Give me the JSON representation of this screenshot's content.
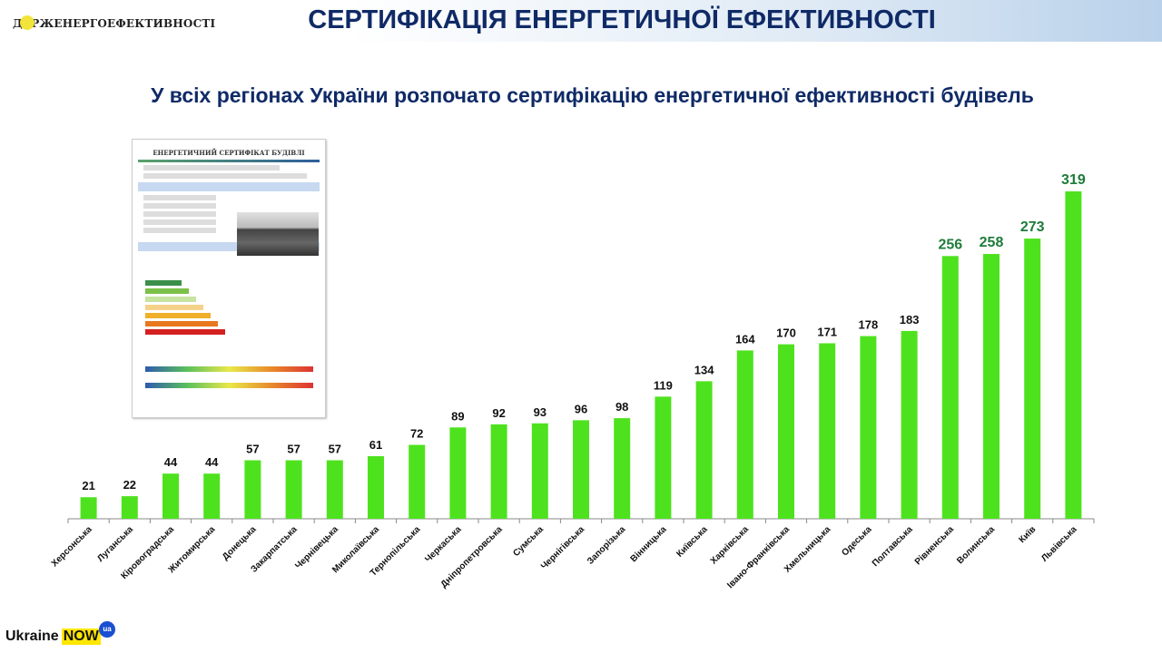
{
  "header": {
    "logo_text": "ДЕРЖЕНЕРГОЕФЕКТИВНОСТІ",
    "title": "СЕРТИФІКАЦІЯ ЕНЕРГЕТИЧНОЇ ЕФЕКТИВНОСТІ"
  },
  "subtitle": "У всіх регіонах України розпочато сертифікацію енергетичної ефективності будівель",
  "certificate": {
    "title": "ЕНЕРГЕТИЧНИЙ СЕРТИФІКАТ БУДІВЛІ"
  },
  "footer": {
    "logo_main": "Ukraine",
    "logo_now": "NOW",
    "logo_badge": "ua"
  },
  "colors": {
    "bar": "#4ee21e",
    "highlight_label": "#1e7b3a",
    "title": "#0f2a66"
  },
  "chart_data": {
    "type": "bar",
    "title": "",
    "xlabel": "",
    "ylabel": "",
    "ylim": [
      0,
      319
    ],
    "grid": false,
    "categories": [
      "Херсонська",
      "Луганська",
      "Кіровоградська",
      "Житомирська",
      "Донецька",
      "Закарпатська",
      "Чернівецька",
      "Миколаївська",
      "Тернопільська",
      "Черкаська",
      "Дніпропетровська",
      "Сумська",
      "Чернігівська",
      "Запорізька",
      "Вінницька",
      "Київська",
      "Харківська",
      "Івано-Франківська",
      "Хмельницька",
      "Одеська",
      "Полтавська",
      "Рівненська",
      "Волинська",
      "Київ",
      "Львівська"
    ],
    "values": [
      21,
      22,
      44,
      44,
      57,
      57,
      57,
      61,
      72,
      89,
      92,
      93,
      96,
      98,
      119,
      134,
      164,
      170,
      171,
      178,
      183,
      256,
      258,
      273,
      319
    ],
    "highlighted_from_index": 21
  }
}
